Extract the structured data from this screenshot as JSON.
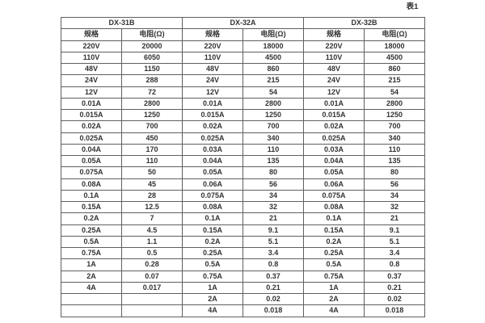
{
  "table": {
    "caption": "表1",
    "groups": [
      "DX-31B",
      "DX-32A",
      "DX-32B"
    ],
    "col_headers": {
      "spec": "规格",
      "resistance": "电阻(Ω)"
    },
    "rows": [
      [
        "220V",
        "20000",
        "220V",
        "18000",
        "220V",
        "18000"
      ],
      [
        "110V",
        "6050",
        "110V",
        "4500",
        "110V",
        "4500"
      ],
      [
        "48V",
        "1150",
        "48V",
        "860",
        "48V",
        "860"
      ],
      [
        "24V",
        "288",
        "24V",
        "215",
        "24V",
        "215"
      ],
      [
        "12V",
        "72",
        "12V",
        "54",
        "12V",
        "54"
      ],
      [
        "0.01A",
        "2800",
        "0.01A",
        "2800",
        "0.01A",
        "2800"
      ],
      [
        "0.015A",
        "1250",
        "0.015A",
        "1250",
        "0.015A",
        "1250"
      ],
      [
        "0.02A",
        "700",
        "0.02A",
        "700",
        "0.02A",
        "700"
      ],
      [
        "0.025A",
        "450",
        "0.025A",
        "340",
        "0.025A",
        "340"
      ],
      [
        "0.04A",
        "170",
        "0.03A",
        "110",
        "0.03A",
        "110"
      ],
      [
        "0.05A",
        "110",
        "0.04A",
        "135",
        "0.04A",
        "135"
      ],
      [
        "0.075A",
        "50",
        "0.05A",
        "80",
        "0.05A",
        "80"
      ],
      [
        "0.08A",
        "45",
        "0.06A",
        "56",
        "0.06A",
        "56"
      ],
      [
        "0.1A",
        "28",
        "0.075A",
        "34",
        "0.075A",
        "34"
      ],
      [
        "0.15A",
        "12.5",
        "0.08A",
        "32",
        "0.08A",
        "32"
      ],
      [
        "0.2A",
        "7",
        "0.1A",
        "21",
        "0.1A",
        "21"
      ],
      [
        "0.25A",
        "4.5",
        "0.15A",
        "9.1",
        "0.15A",
        "9.1"
      ],
      [
        "0.5A",
        "1.1",
        "0.2A",
        "5.1",
        "0.2A",
        "5.1"
      ],
      [
        "0.75A",
        "0.5",
        "0.25A",
        "3.4",
        "0.25A",
        "3.4"
      ],
      [
        "1A",
        "0.28",
        "0.5A",
        "0.8",
        "0.5A",
        "0.8"
      ],
      [
        "2A",
        "0.07",
        "0.75A",
        "0.37",
        "0.75A",
        "0.37"
      ],
      [
        "4A",
        "0.017",
        "1A",
        "0.21",
        "1A",
        "0.21"
      ],
      [
        "",
        "",
        "2A",
        "0.02",
        "2A",
        "0.02"
      ],
      [
        "",
        "",
        "4A",
        "0.018",
        "4A",
        "0.018"
      ]
    ],
    "colors": {
      "border": "#5f5f5f",
      "text": "#333333",
      "background": "#ffffff"
    }
  }
}
